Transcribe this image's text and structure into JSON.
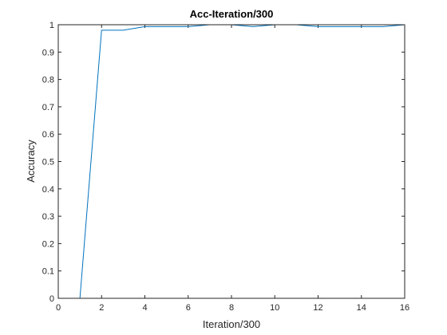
{
  "chart_data": {
    "type": "line",
    "title": "Acc-Iteration/300",
    "xlabel": "Iteration/300",
    "ylabel": "Accuracy",
    "xlim": [
      0,
      16
    ],
    "ylim": [
      0,
      1
    ],
    "xticks": [
      0,
      2,
      4,
      6,
      8,
      10,
      12,
      14,
      16
    ],
    "yticks": [
      0,
      0.1,
      0.2,
      0.3,
      0.4,
      0.5,
      0.6,
      0.7,
      0.8,
      0.9,
      1
    ],
    "xtick_labels": [
      "0",
      "2",
      "4",
      "6",
      "8",
      "10",
      "12",
      "14",
      "16"
    ],
    "ytick_labels": [
      "0",
      "0.1",
      "0.2",
      "0.3",
      "0.4",
      "0.5",
      "0.6",
      "0.7",
      "0.8",
      "0.9",
      "1"
    ],
    "grid": false,
    "series": [
      {
        "color": "#0072BD",
        "x": [
          1,
          2,
          3,
          4,
          5,
          6,
          7,
          8,
          9,
          10,
          11,
          12,
          13,
          14,
          15,
          16
        ],
        "y": [
          0,
          0.98,
          0.98,
          0.993,
          0.993,
          0.993,
          1.0,
          1.0,
          0.993,
          1.0,
          1.0,
          0.993,
          0.993,
          0.993,
          0.993,
          1.0
        ]
      }
    ]
  }
}
